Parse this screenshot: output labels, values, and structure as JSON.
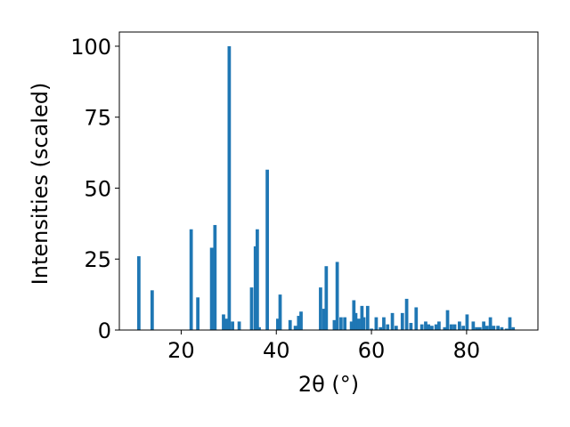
{
  "chart_data": {
    "type": "bar",
    "title": "",
    "xlabel": "2θ (°)",
    "ylabel": "Intensities (scaled)",
    "xlim": [
      7,
      95
    ],
    "ylim": [
      0,
      105
    ],
    "xticks": [
      20,
      40,
      60,
      80
    ],
    "yticks": [
      0,
      25,
      50,
      75,
      100
    ],
    "bar_width": 0.7,
    "color": "#1f77b4",
    "grid": false,
    "x": [
      11.1,
      13.9,
      22.1,
      23.5,
      26.4,
      27.1,
      28.9,
      29.5,
      30.1,
      30.8,
      32.2,
      34.8,
      35.6,
      36.0,
      36.4,
      38.1,
      40.3,
      40.8,
      42.9,
      44.0,
      44.7,
      45.2,
      49.3,
      50.0,
      50.5,
      52.2,
      52.8,
      53.6,
      54.4,
      55.8,
      56.3,
      56.7,
      57.3,
      58.0,
      58.4,
      59.2,
      60.0,
      61.0,
      61.9,
      62.6,
      63.4,
      64.4,
      65.2,
      66.5,
      67.4,
      68.3,
      69.4,
      70.6,
      71.4,
      72.0,
      72.7,
      73.6,
      74.2,
      75.4,
      76.0,
      76.8,
      77.5,
      78.5,
      79.3,
      80.1,
      81.4,
      82.1,
      82.8,
      83.6,
      84.3,
      85.0,
      85.7,
      86.6,
      87.4,
      88.4,
      89.1,
      89.8
    ],
    "values": [
      26,
      14,
      35.5,
      11.5,
      29,
      37,
      5.5,
      4,
      100,
      3,
      3,
      15,
      29.5,
      35.5,
      1,
      56.5,
      4,
      12.5,
      3.5,
      1.5,
      5,
      6.5,
      15,
      7.5,
      22.5,
      3.5,
      24,
      4.5,
      4.5,
      3,
      10.5,
      6,
      4,
      8.5,
      4.5,
      8.5,
      0.5,
      4.5,
      1,
      4.5,
      2,
      6,
      1.5,
      6,
      11,
      2.5,
      8,
      2,
      3,
      2,
      1.5,
      2,
      3,
      1,
      7,
      2,
      2,
      3,
      1.5,
      5.5,
      3,
      1,
      1,
      3,
      1.5,
      4.5,
      1.5,
      1.5,
      1,
      0.5,
      4.5,
      1
    ]
  }
}
